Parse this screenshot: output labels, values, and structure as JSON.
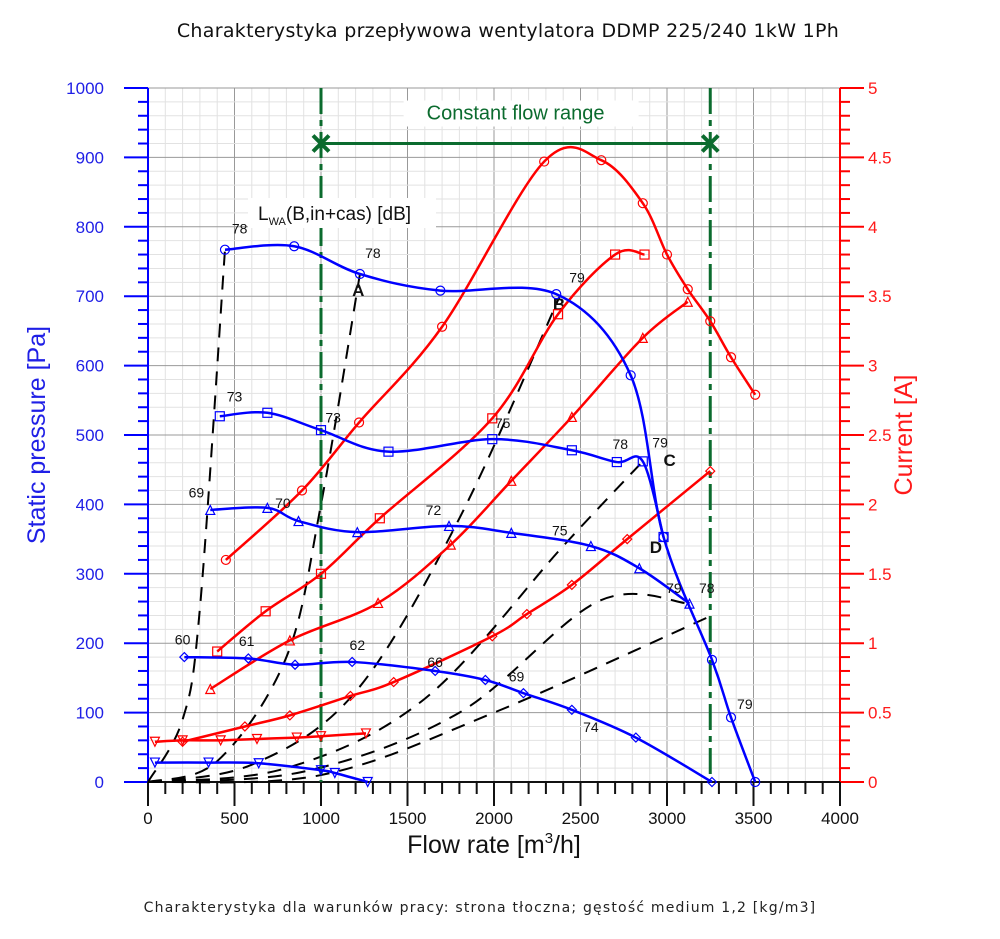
{
  "title": "Charakterystyka przepływowa wentylatora DDMP 225/240 1kW 1Ph",
  "footer": "Charakterystyka dla warunków pracy: strona tłoczna; gęstość medium 1,2 [kg/m3]",
  "chart_data": {
    "type": "line",
    "title": "Charakterystyka przepływowa wentylatora DDMP 225/240 1kW 1Ph",
    "xlabel": "Flow rate [m3/h]",
    "xlabel_main": "Flow rate [m",
    "xlabel_sup": "3",
    "xlabel_end": "/h]",
    "ylabel": "Static pressure [Pa]",
    "y2label": "Current [A]",
    "xlim": [
      0,
      4000
    ],
    "ylim": [
      0,
      1000
    ],
    "y2lim": [
      0,
      5
    ],
    "x_ticks": [
      "0",
      "500",
      "1000",
      "1500",
      "2000",
      "2500",
      "3000",
      "3500",
      "4000"
    ],
    "y_ticks": [
      "0",
      "100",
      "200",
      "300",
      "400",
      "500",
      "600",
      "700",
      "800",
      "900",
      "1000"
    ],
    "y2_ticks": [
      "0",
      "0.5",
      "1",
      "1.5",
      "2",
      "2.5",
      "3",
      "3.5",
      "4",
      "4.5",
      "5"
    ],
    "grid": true,
    "colors": {
      "pressure": "#0000ff",
      "current": "#ff0000",
      "constant_flow": "#0b6b2e",
      "system": "#000000"
    },
    "constant_flow_range": {
      "label": "Constant flow range",
      "x_from": 1000,
      "x_to": 3250,
      "y": 920
    },
    "noise_label": {
      "main": "L",
      "sub": "WA",
      "rest": "(B,in+cas) [dB]"
    },
    "pressure_series": [
      {
        "name": "pressure-1",
        "marker": "circle",
        "points": [
          [
            445,
            767
          ],
          [
            845,
            772
          ],
          [
            1225,
            732
          ],
          [
            1690,
            708
          ],
          [
            2360,
            703
          ],
          [
            2790,
            586
          ],
          [
            2980,
            353
          ],
          [
            3260,
            176
          ],
          [
            3370,
            93
          ],
          [
            3510,
            0
          ]
        ]
      },
      {
        "name": "pressure-2",
        "marker": "square",
        "points": [
          [
            415,
            527
          ],
          [
            690,
            532
          ],
          [
            1000,
            507
          ],
          [
            1390,
            476
          ],
          [
            1990,
            494
          ],
          [
            2450,
            478
          ],
          [
            2710,
            461
          ],
          [
            2860,
            462
          ],
          [
            2980,
            353
          ]
        ]
      },
      {
        "name": "pressure-3",
        "marker": "triangle",
        "points": [
          [
            360,
            392
          ],
          [
            690,
            395
          ],
          [
            870,
            376
          ],
          [
            1210,
            360
          ],
          [
            1740,
            369
          ],
          [
            2100,
            359
          ],
          [
            2560,
            340
          ],
          [
            2840,
            308
          ],
          [
            3130,
            257
          ]
        ]
      },
      {
        "name": "pressure-4",
        "marker": "diamond",
        "points": [
          [
            210,
            180
          ],
          [
            580,
            178
          ],
          [
            850,
            169
          ],
          [
            1180,
            173
          ],
          [
            1660,
            160
          ],
          [
            1950,
            147
          ],
          [
            2170,
            128
          ],
          [
            2450,
            104
          ],
          [
            2820,
            64
          ],
          [
            3260,
            0
          ]
        ]
      },
      {
        "name": "pressure-5",
        "marker": "down-triangle",
        "points": [
          [
            40,
            28
          ],
          [
            350,
            28
          ],
          [
            640,
            27
          ],
          [
            1000,
            17
          ],
          [
            1080,
            13
          ],
          [
            1270,
            0
          ]
        ]
      }
    ],
    "current_series": [
      {
        "name": "current-1",
        "marker": "circle",
        "points": [
          [
            450,
            1.6
          ],
          [
            890,
            2.1
          ],
          [
            1220,
            2.59
          ],
          [
            1700,
            3.28
          ],
          [
            2290,
            4.47
          ],
          [
            2620,
            4.48
          ],
          [
            2860,
            4.17
          ],
          [
            3000,
            3.8
          ],
          [
            3120,
            3.55
          ],
          [
            3250,
            3.32
          ],
          [
            3370,
            3.06
          ],
          [
            3510,
            2.79
          ]
        ]
      },
      {
        "name": "current-2",
        "marker": "square",
        "points": [
          [
            400,
            0.94
          ],
          [
            680,
            1.23
          ],
          [
            1000,
            1.5
          ],
          [
            1340,
            1.9
          ],
          [
            1990,
            2.62
          ],
          [
            2370,
            3.37
          ],
          [
            2700,
            3.8
          ],
          [
            2870,
            3.8
          ]
        ]
      },
      {
        "name": "current-3",
        "marker": "triangle",
        "points": [
          [
            360,
            0.67
          ],
          [
            820,
            1.02
          ],
          [
            1330,
            1.29
          ],
          [
            1750,
            1.71
          ],
          [
            2100,
            2.17
          ],
          [
            2450,
            2.63
          ],
          [
            2860,
            3.2
          ],
          [
            3120,
            3.46
          ]
        ]
      },
      {
        "name": "current-4",
        "marker": "diamond",
        "points": [
          [
            200,
            0.29
          ],
          [
            560,
            0.4
          ],
          [
            820,
            0.48
          ],
          [
            1170,
            0.62
          ],
          [
            1420,
            0.72
          ],
          [
            1990,
            1.05
          ],
          [
            2190,
            1.21
          ],
          [
            2450,
            1.42
          ],
          [
            2770,
            1.75
          ],
          [
            3250,
            2.24
          ]
        ]
      },
      {
        "name": "current-5",
        "marker": "down-triangle",
        "points": [
          [
            40,
            0.29
          ],
          [
            200,
            0.3
          ],
          [
            420,
            0.3
          ],
          [
            630,
            0.31
          ],
          [
            860,
            0.32
          ],
          [
            1000,
            0.33
          ],
          [
            1260,
            0.35
          ]
        ]
      }
    ],
    "system_curves": [
      {
        "name": "system-1",
        "points": [
          [
            0,
            0
          ],
          [
            200,
            90
          ],
          [
            300,
            250
          ],
          [
            445,
            767
          ]
        ]
      },
      {
        "name": "A",
        "label": "A",
        "points": [
          [
            0,
            0
          ],
          [
            400,
            30
          ],
          [
            800,
            180
          ],
          [
            1000,
            400
          ],
          [
            1225,
            732
          ]
        ]
      },
      {
        "name": "B",
        "label": "B",
        "points": [
          [
            0,
            0
          ],
          [
            600,
            25
          ],
          [
            1200,
            130
          ],
          [
            1800,
            380
          ],
          [
            2380,
            700
          ]
        ]
      },
      {
        "name": "C",
        "label": "C",
        "points": [
          [
            0,
            0
          ],
          [
            800,
            20
          ],
          [
            1600,
            120
          ],
          [
            2400,
            340
          ],
          [
            2860,
            462
          ]
        ]
      },
      {
        "name": "D",
        "label": "D",
        "points": [
          [
            0,
            0
          ],
          [
            900,
            15
          ],
          [
            1800,
            100
          ],
          [
            2600,
            260
          ],
          [
            3130,
            257
          ]
        ]
      },
      {
        "name": "system-6",
        "points": [
          [
            0,
            0
          ],
          [
            1000,
            10
          ],
          [
            2000,
            100
          ],
          [
            3260,
            240
          ]
        ]
      }
    ],
    "curve_letters": [
      {
        "text": "A",
        "x": 1180,
        "y": 700
      },
      {
        "text": "B",
        "x": 2340,
        "y": 680
      },
      {
        "text": "C",
        "x": 2980,
        "y": 455
      },
      {
        "text": "D",
        "x": 2900,
        "y": 330
      }
    ],
    "db_labels": [
      {
        "text": "78",
        "x": 530,
        "y": 790
      },
      {
        "text": "78",
        "x": 1300,
        "y": 755
      },
      {
        "text": "79",
        "x": 2480,
        "y": 720
      },
      {
        "text": "73",
        "x": 500,
        "y": 548
      },
      {
        "text": "73",
        "x": 1070,
        "y": 518
      },
      {
        "text": "75",
        "x": 2050,
        "y": 510
      },
      {
        "text": "78",
        "x": 2730,
        "y": 480
      },
      {
        "text": "79",
        "x": 2960,
        "y": 482
      },
      {
        "text": "69",
        "x": 280,
        "y": 410
      },
      {
        "text": "70",
        "x": 780,
        "y": 395
      },
      {
        "text": "72",
        "x": 1650,
        "y": 385
      },
      {
        "text": "75",
        "x": 2380,
        "y": 355
      },
      {
        "text": "79",
        "x": 3040,
        "y": 272
      },
      {
        "text": "78",
        "x": 3230,
        "y": 272
      },
      {
        "text": "60",
        "x": 200,
        "y": 198
      },
      {
        "text": "61",
        "x": 570,
        "y": 196
      },
      {
        "text": "62",
        "x": 1210,
        "y": 190
      },
      {
        "text": "66",
        "x": 1660,
        "y": 166
      },
      {
        "text": "69",
        "x": 2130,
        "y": 145
      },
      {
        "text": "74",
        "x": 2560,
        "y": 72
      },
      {
        "text": "79",
        "x": 3450,
        "y": 105
      }
    ]
  }
}
